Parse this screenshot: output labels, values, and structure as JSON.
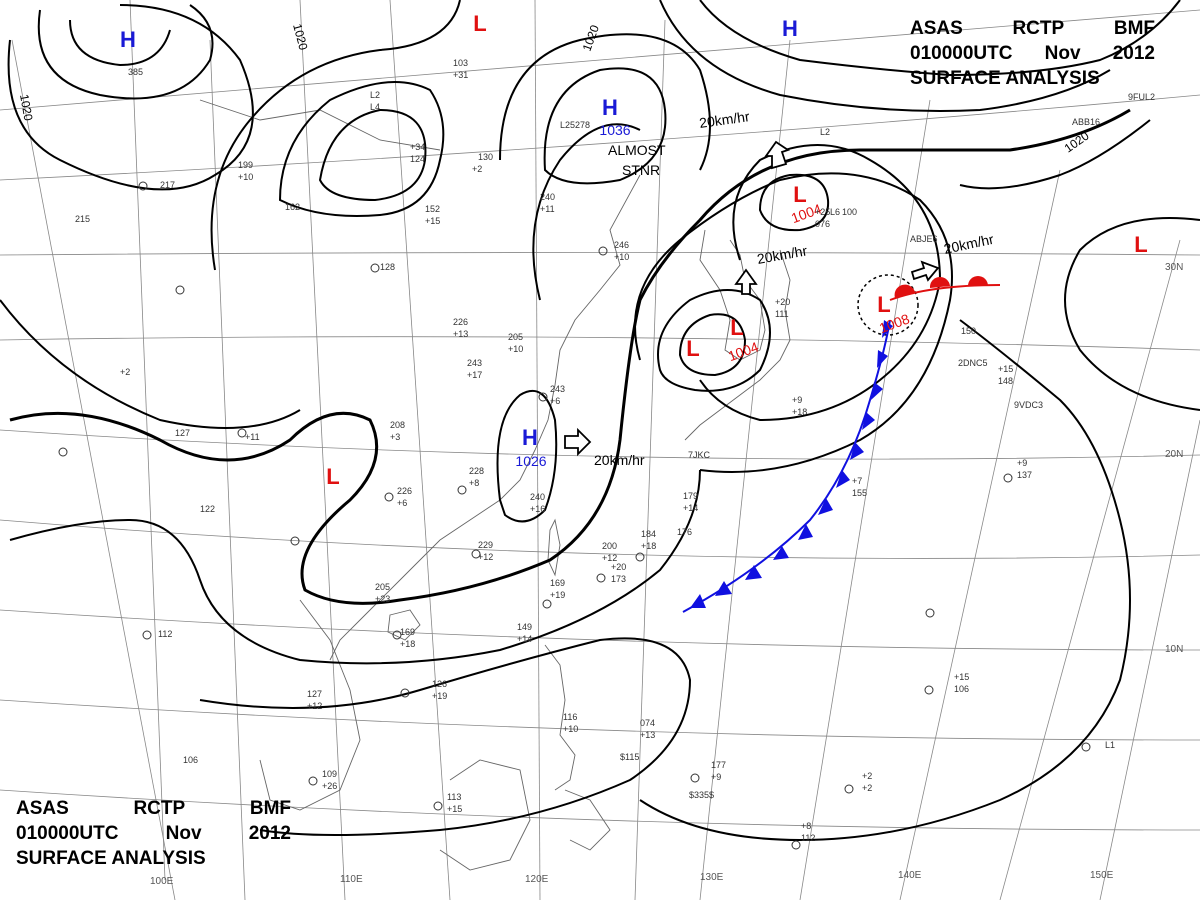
{
  "header": {
    "agency": "ASAS",
    "station": "RCTP",
    "code": "BMF",
    "time": "010000UTC",
    "month": "Nov",
    "year": "2012",
    "title": "SURFACE ANALYSIS"
  },
  "colors": {
    "high": "#1a1ad6",
    "low": "#e01010",
    "cold_front": "#1010e0",
    "warm_front": "#e01010",
    "isobar": "#000000",
    "grid": "#888888",
    "coast": "#666666"
  },
  "pressure_centers": [
    {
      "type": "H",
      "label": "H",
      "value": ""
    },
    {
      "type": "H",
      "label": "H",
      "value": "1036"
    },
    {
      "type": "H",
      "label": "H",
      "value": "1026"
    },
    {
      "type": "H",
      "label": "H",
      "value": ""
    },
    {
      "type": "L",
      "label": "L",
      "value": ""
    },
    {
      "type": "L",
      "label": "L",
      "value": ""
    },
    {
      "type": "L",
      "label": "L",
      "value": "1004"
    },
    {
      "type": "L",
      "label": "L",
      "value": "1004"
    },
    {
      "type": "L",
      "label": "L",
      "value": "1008"
    },
    {
      "type": "L",
      "label": "L",
      "value": ""
    },
    {
      "type": "L",
      "label": "L",
      "value": ""
    }
  ],
  "isobar_labels": [
    "1020",
    "1020",
    "1020",
    "1020"
  ],
  "annotations": {
    "almost": "ALMOST",
    "stnr": "STNR",
    "speeds": [
      "20km/hr",
      "20km/hr",
      "20km/hr",
      "20km/hr"
    ]
  },
  "longitude_labels": [
    "100E",
    "110E",
    "120E",
    "130E",
    "140E",
    "150E"
  ],
  "latitude_labels": [
    "30N",
    "20N",
    "10N"
  ],
  "station_reports": [
    "385",
    "103",
    "+31",
    "L2",
    "L4",
    "+34",
    "124",
    "130",
    "+2",
    "L25",
    "278",
    "199",
    "+10",
    "217",
    "162",
    "152",
    "+15",
    "240",
    "+11",
    "246",
    "+10",
    "215",
    "128",
    "226",
    "+13",
    "205",
    "+10",
    "243",
    "+17",
    "243",
    "+6",
    "208",
    "+3",
    "226",
    "+6",
    "228",
    "+8",
    "240",
    "+16",
    "229",
    "+12",
    "205",
    "+23",
    "169",
    "+18",
    "126",
    "+19",
    "127",
    "+12",
    "112",
    "122",
    "127",
    "+11",
    "+2",
    "106",
    "109",
    "+26",
    "113",
    "+15",
    "179",
    "+14",
    "184",
    "+18",
    "200",
    "+12",
    "176",
    "+20",
    "173",
    "169",
    "+19",
    "149",
    "+14",
    "116",
    "+10",
    "074",
    "+13",
    "177",
    "+9",
    "150",
    "+15",
    "148",
    "+7",
    "155",
    "+9",
    "137",
    "+15",
    "106",
    "+8",
    "112",
    "+2",
    "+2",
    "L1",
    "L2",
    "L6",
    "100",
    "+25",
    "076",
    "+20",
    "111",
    "+9",
    "+18",
    "7JKC",
    "$115",
    "$335$",
    "2DNC5",
    "9VDC3",
    "ABJE6",
    "ABB16",
    "9FUL2"
  ]
}
